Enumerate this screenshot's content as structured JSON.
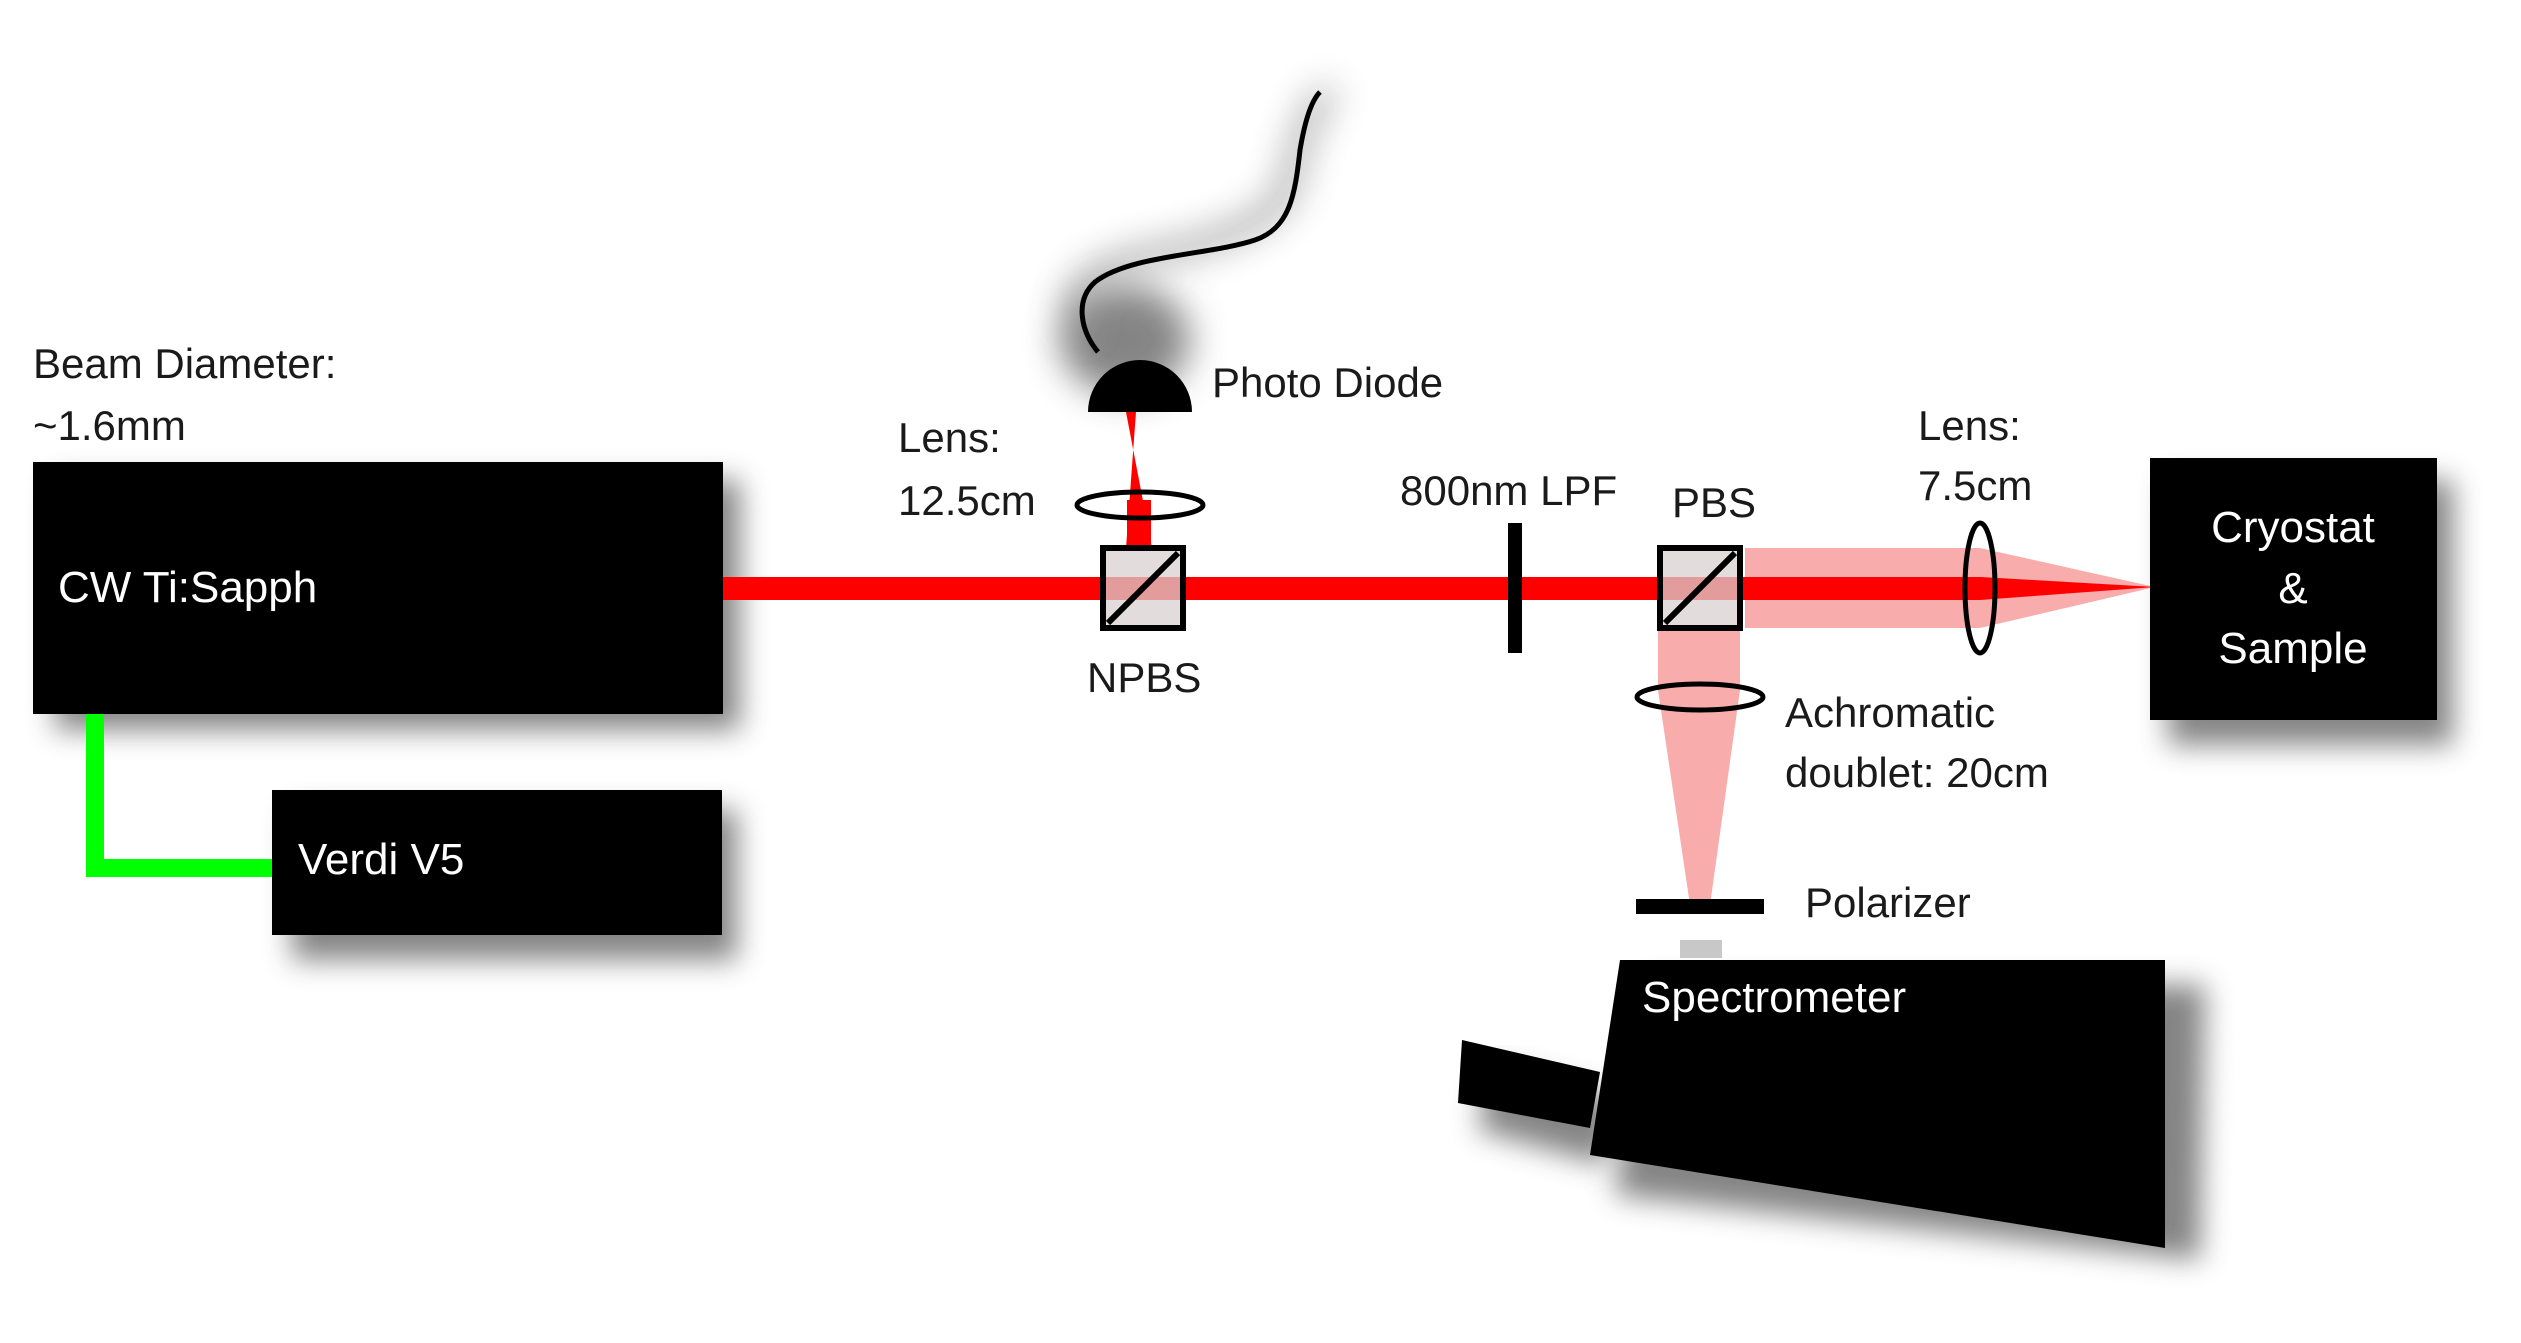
{
  "labels": {
    "beam_diameter_line1": "Beam Diameter:",
    "beam_diameter_line2": "~1.6mm",
    "laser": "CW Ti:Sapph",
    "pump": "Verdi V5",
    "lens1_line1": "Lens:",
    "lens1_line2": "12.5cm",
    "photodiode": "Photo Diode",
    "npbs": "NPBS",
    "lpf": "800nm LPF",
    "pbs": "PBS",
    "lens2_line1": "Lens:",
    "lens2_line2": "7.5cm",
    "cryostat_line1": "Cryostat",
    "cryostat_line2": "&",
    "cryostat_line3": "Sample",
    "achromat_line1": "Achromatic",
    "achromat_line2": "doublet: 20cm",
    "polarizer": "Polarizer",
    "spectrometer": "Spectrometer"
  },
  "colors": {
    "laser_beam": "#ff0000",
    "return_beam": "#f7a3a3",
    "pump_beam": "#00ff00",
    "equipment": "#000000",
    "shadow": "#6e6e6e"
  }
}
